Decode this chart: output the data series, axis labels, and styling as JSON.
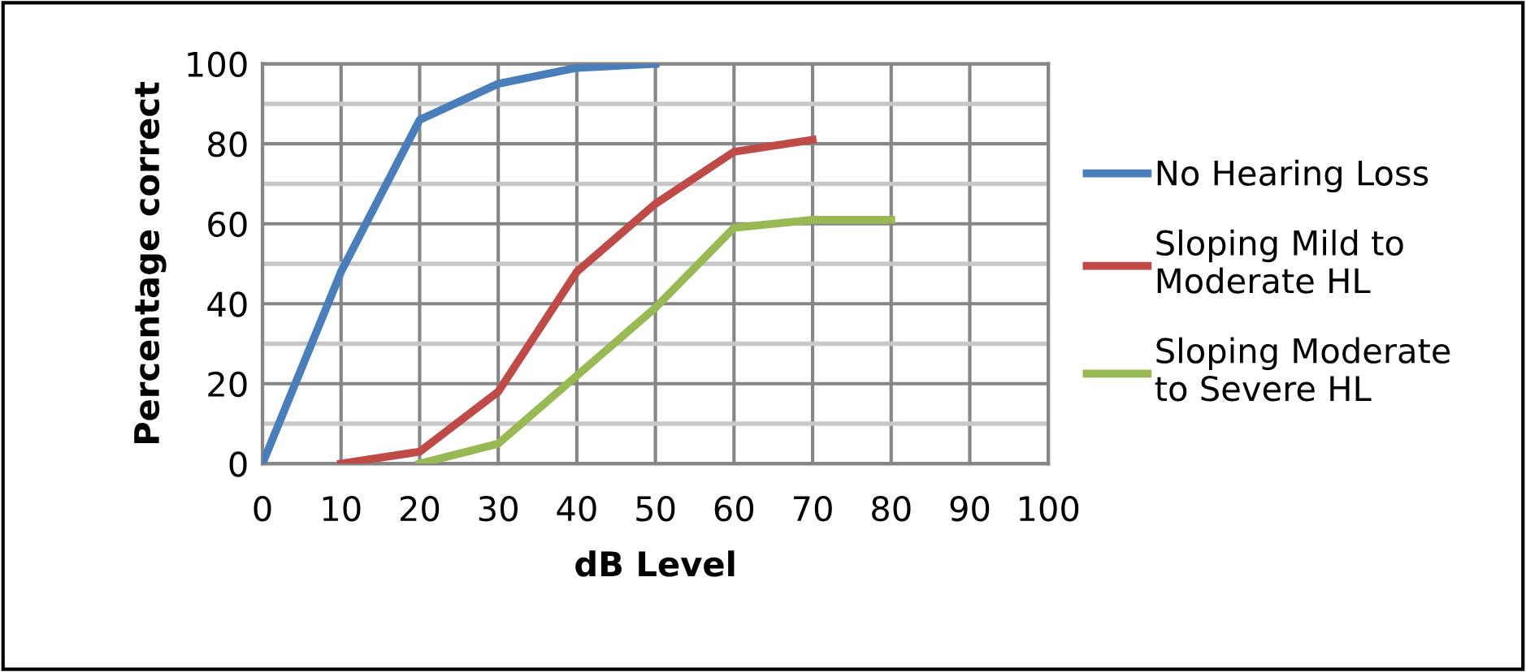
{
  "chart_data": {
    "type": "line",
    "xlabel": "dB Level",
    "ylabel": "Percentage correct",
    "series": [
      {
        "name": "No Hearing Loss",
        "color": "#4a7ebb",
        "x": [
          0,
          10,
          20,
          30,
          40,
          50
        ],
        "values": [
          0,
          48,
          86,
          95,
          99,
          100
        ]
      },
      {
        "name": "Sloping Mild to Moderate HL",
        "color": "#be4b48",
        "x": [
          10,
          20,
          30,
          40,
          50,
          60,
          70
        ],
        "values": [
          0,
          3,
          18,
          48,
          65,
          78,
          81
        ]
      },
      {
        "name": "Sloping Moderate to Severe HL",
        "color": "#98b954",
        "x": [
          20,
          30,
          40,
          50,
          60,
          70,
          80
        ],
        "values": [
          0,
          5,
          22,
          39,
          59,
          61,
          61
        ]
      }
    ],
    "xlim": [
      0,
      100
    ],
    "xticks": [
      0,
      10,
      20,
      30,
      40,
      50,
      60,
      70,
      80,
      90,
      100
    ],
    "ylim": [
      0,
      100
    ],
    "yticks": [
      0,
      {
        "value": 10,
        "label": null
      },
      20,
      {
        "value": 30,
        "label": null
      },
      40,
      {
        "value": 50,
        "label": null
      },
      60,
      {
        "value": 70,
        "label": null
      },
      80,
      {
        "value": 90,
        "label": null
      },
      100
    ],
    "grid": true,
    "legend": "right",
    "marker": "none",
    "line_style": "solid"
  }
}
